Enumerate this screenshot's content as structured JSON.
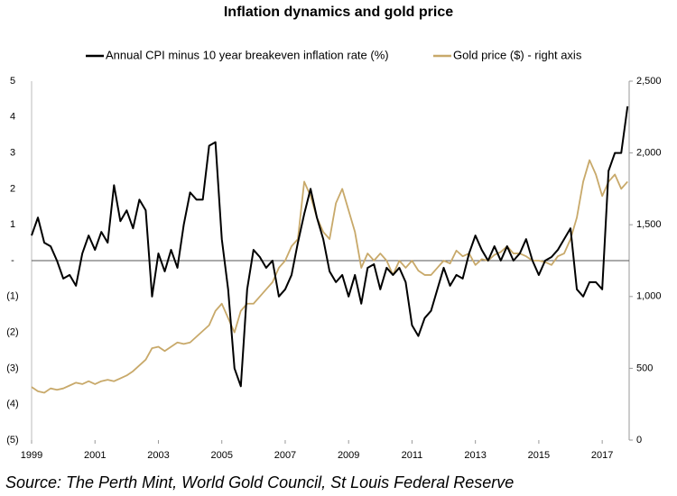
{
  "chart_data": {
    "type": "line",
    "title": "Inflation dynamics and gold price",
    "source": "Source: The Perth Mint, World Gold Council, St Louis Federal Reserve",
    "x": [
      1999.0,
      1999.2,
      1999.4,
      1999.6,
      1999.8,
      2000.0,
      2000.2,
      2000.4,
      2000.6,
      2000.8,
      2001.0,
      2001.2,
      2001.4,
      2001.6,
      2001.8,
      2002.0,
      2002.2,
      2002.4,
      2002.6,
      2002.8,
      2003.0,
      2003.2,
      2003.4,
      2003.6,
      2003.8,
      2004.0,
      2004.2,
      2004.4,
      2004.6,
      2004.8,
      2005.0,
      2005.2,
      2005.4,
      2005.6,
      2005.8,
      2006.0,
      2006.2,
      2006.4,
      2006.6,
      2006.8,
      2007.0,
      2007.2,
      2007.4,
      2007.6,
      2007.8,
      2008.0,
      2008.2,
      2008.4,
      2008.6,
      2008.8,
      2009.0,
      2009.2,
      2009.4,
      2009.6,
      2009.8,
      2010.0,
      2010.2,
      2010.4,
      2010.6,
      2010.8,
      2011.0,
      2011.2,
      2011.4,
      2011.6,
      2011.8,
      2012.0,
      2012.2,
      2012.4,
      2012.6,
      2012.8,
      2013.0,
      2013.2,
      2013.4,
      2013.6,
      2013.8,
      2014.0,
      2014.2,
      2014.4,
      2014.6,
      2014.8,
      2015.0,
      2015.2,
      2015.4,
      2015.6,
      2015.8,
      2016.0,
      2016.2,
      2016.4,
      2016.6,
      2016.8,
      2017.0,
      2017.2,
      2017.4,
      2017.6,
      2017.8
    ],
    "series": [
      {
        "name": "Annual CPI minus 10 year breakeven inflation rate (%)",
        "color": "#000000",
        "values": [
          0.7,
          1.2,
          0.5,
          0.4,
          0.0,
          -0.5,
          -0.4,
          -0.7,
          0.2,
          0.7,
          0.3,
          0.8,
          0.5,
          2.1,
          1.1,
          1.4,
          0.9,
          1.7,
          1.4,
          -1.0,
          0.2,
          -0.3,
          0.3,
          -0.2,
          1.0,
          1.9,
          1.7,
          1.7,
          3.2,
          3.3,
          0.6,
          -0.8,
          -3.0,
          -3.5,
          -0.8,
          0.3,
          0.1,
          -0.2,
          0.0,
          -1.0,
          -0.8,
          -0.4,
          0.5,
          1.3,
          2.0,
          1.2,
          0.6,
          -0.3,
          -0.6,
          -0.4,
          -1.0,
          -0.4,
          -1.2,
          -0.2,
          -0.1,
          -0.8,
          -0.2,
          -0.4,
          -0.2,
          -0.6,
          -1.8,
          -2.1,
          -1.6,
          -1.4,
          -0.8,
          -0.2,
          -0.7,
          -0.4,
          -0.5,
          0.2,
          0.7,
          0.3,
          0.0,
          0.4,
          0.0,
          0.4,
          0.0,
          0.2,
          0.6,
          0.0,
          -0.4,
          0.0,
          0.1,
          0.3,
          0.6,
          0.9,
          -0.8,
          -1.0,
          -0.6,
          -0.6,
          -0.8,
          2.5,
          3.0,
          3.0,
          4.3
        ]
      },
      {
        "name": "Gold price ($) - right axis",
        "color": "#c8a96a",
        "axis": "y2",
        "values": [
          370,
          340,
          330,
          360,
          350,
          360,
          380,
          400,
          390,
          410,
          390,
          410,
          420,
          410,
          430,
          450,
          480,
          520,
          560,
          640,
          650,
          620,
          650,
          680,
          670,
          680,
          720,
          760,
          800,
          900,
          950,
          850,
          750,
          900,
          950,
          950,
          1000,
          1050,
          1100,
          1200,
          1250,
          1350,
          1400,
          1800,
          1700,
          1550,
          1450,
          1400,
          1650,
          1750,
          1600,
          1450,
          1200,
          1300,
          1250,
          1300,
          1250,
          1150,
          1250,
          1200,
          1250,
          1180,
          1150,
          1150,
          1200,
          1250,
          1230,
          1320,
          1280,
          1300,
          1220,
          1260,
          1250,
          1290,
          1310,
          1350,
          1300,
          1300,
          1280,
          1250,
          1250,
          1240,
          1220,
          1280,
          1300,
          1400,
          1550,
          1800,
          1950,
          1850,
          1700,
          1800,
          1850,
          1750,
          1800
        ]
      }
    ],
    "xlim": [
      1999,
      2017.85
    ],
    "xticks": [
      1999,
      2001,
      2003,
      2005,
      2007,
      2009,
      2011,
      2013,
      2015,
      2017
    ],
    "ylim": [
      -5,
      5
    ],
    "yticks": [
      {
        "value": -5,
        "label": "(5)"
      },
      {
        "value": -4,
        "label": "(4)"
      },
      {
        "value": -3,
        "label": "(3)"
      },
      {
        "value": -2,
        "label": "(2)"
      },
      {
        "value": -1,
        "label": "(1)"
      },
      {
        "value": 0,
        "label": "-"
      },
      1,
      2,
      3,
      4,
      5
    ],
    "y2lim": [
      0,
      2500
    ],
    "y2ticks": [
      0,
      500,
      {
        "value": 1000,
        "label": "1,000"
      },
      {
        "value": 1500,
        "label": "1,500"
      },
      {
        "value": 2000,
        "label": "2,000"
      },
      {
        "value": 2500,
        "label": "2,500"
      }
    ],
    "legend": "top"
  }
}
